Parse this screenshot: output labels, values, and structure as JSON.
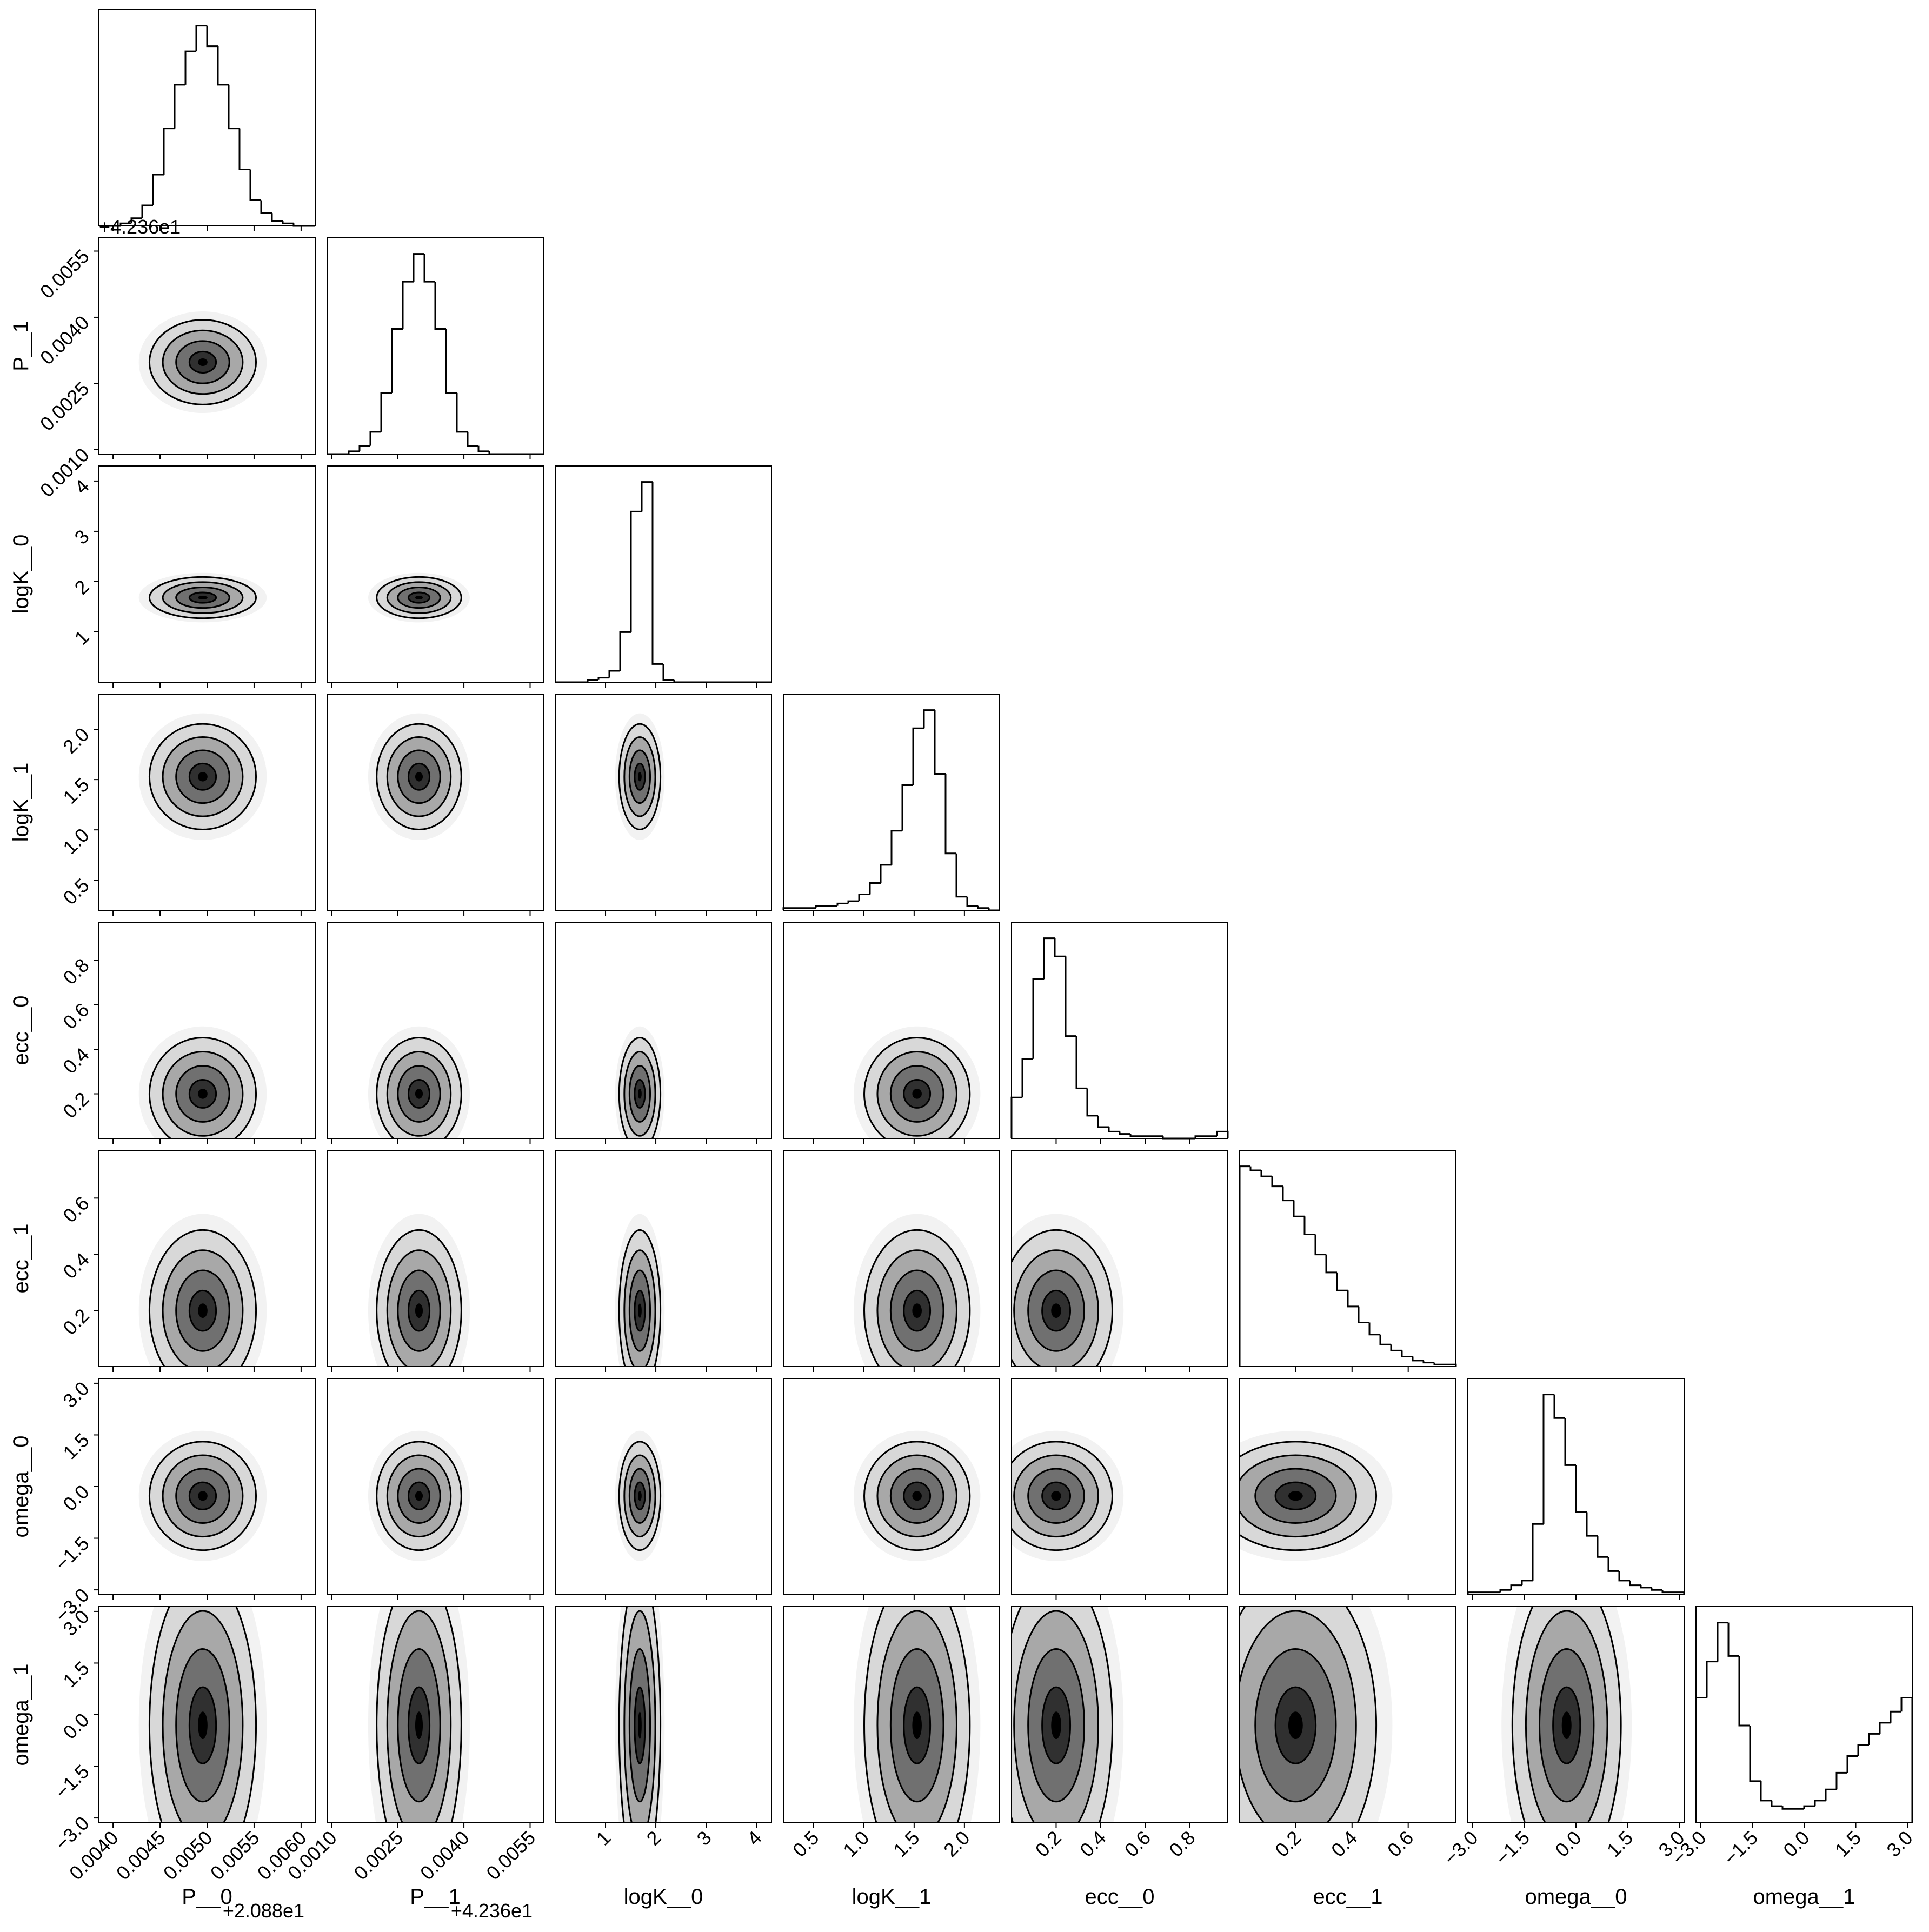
{
  "chart_data": {
    "type": "corner",
    "params": [
      {
        "label": "P__0",
        "offset": "+2.088e1",
        "xlim": [
          0.00385,
          0.00615
        ],
        "ticks": [
          {
            "value": 0.004,
            "label": "0.0040"
          },
          0.0045,
          {
            "value": 0.005,
            "label": "0.0050"
          },
          0.0055,
          {
            "value": 0.006,
            "label": "0.0060"
          }
        ],
        "counts": [
          0,
          0,
          1,
          3,
          8,
          20,
          38,
          55,
          68,
          78,
          70,
          55,
          38,
          22,
          10,
          5,
          2,
          1,
          0,
          0
        ]
      },
      {
        "label": "P__1",
        "offset": "+4.236e1",
        "xlim": [
          0.0009,
          0.0058
        ],
        "ticks": [
          {
            "value": 0.001,
            "label": "0.0010"
          },
          0.0025,
          {
            "value": 0.004,
            "label": "0.0040"
          },
          0.0055
        ],
        "counts": [
          0,
          0,
          1,
          3,
          8,
          22,
          45,
          62,
          72,
          62,
          45,
          22,
          8,
          3,
          1,
          0,
          0,
          0,
          0,
          0
        ]
      },
      {
        "label": "logK__0",
        "xlim": [
          0,
          4.3
        ],
        "ticks": [
          1,
          2,
          3,
          4
        ],
        "counts": [
          0,
          0,
          0,
          1,
          2,
          5,
          22,
          75,
          88,
          8,
          1,
          0,
          0,
          0,
          0,
          0,
          0,
          0,
          0,
          0
        ]
      },
      {
        "label": "logK__1",
        "xlim": [
          0.2,
          2.35
        ],
        "ticks": [
          0.5,
          {
            "value": 1,
            "label": "1.0"
          },
          1.5,
          {
            "value": 2,
            "label": "2.0"
          }
        ],
        "counts": [
          1,
          1,
          1,
          2,
          2,
          3,
          4,
          7,
          12,
          20,
          35,
          55,
          80,
          88,
          60,
          25,
          6,
          2,
          1,
          0
        ]
      },
      {
        "label": "ecc__0",
        "xlim": [
          0,
          0.97
        ],
        "ticks": [
          0.2,
          0.4,
          0.6,
          0.8
        ],
        "counts": [
          18,
          35,
          70,
          88,
          80,
          45,
          22,
          10,
          5,
          3,
          2,
          1,
          1,
          1,
          0,
          0,
          0,
          1,
          1,
          3
        ]
      },
      {
        "label": "ecc__1",
        "xlim": [
          0,
          0.77
        ],
        "ticks": [
          0.2,
          0.4,
          0.6
        ],
        "counts": [
          100,
          98,
          95,
          90,
          83,
          75,
          66,
          56,
          47,
          38,
          30,
          22,
          16,
          11,
          8,
          5,
          3,
          2,
          1,
          1
        ]
      },
      {
        "label": "omega__0",
        "xlim": [
          -3.14,
          3.14
        ],
        "ticks": [
          {
            "value": -3,
            "label": "−3.0"
          },
          {
            "value": -1.5,
            "label": "−1.5"
          },
          {
            "value": 0,
            "label": "0.0"
          },
          1.5,
          {
            "value": 3,
            "label": "3.0"
          }
        ],
        "counts": [
          1,
          1,
          1,
          2,
          4,
          6,
          30,
          85,
          75,
          55,
          35,
          25,
          16,
          10,
          6,
          4,
          3,
          2,
          1,
          1
        ]
      },
      {
        "label": "omega__1",
        "xlim": [
          -3.14,
          3.14
        ],
        "ticks": [
          {
            "value": -3,
            "label": "−3.0"
          },
          {
            "value": -1.5,
            "label": "−1.5"
          },
          {
            "value": 0,
            "label": "0.0"
          },
          1.5,
          {
            "value": 3,
            "label": "3.0"
          }
        ],
        "counts": [
          45,
          58,
          72,
          60,
          35,
          15,
          8,
          6,
          5,
          5,
          6,
          8,
          12,
          18,
          24,
          28,
          32,
          36,
          40,
          45
        ]
      }
    ]
  }
}
